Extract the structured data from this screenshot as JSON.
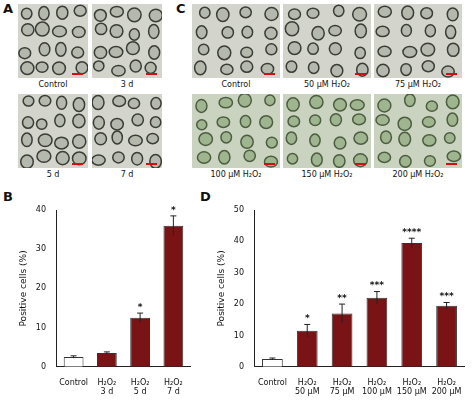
{
  "panels": [
    {
      "label": "A",
      "images": [
        "Control",
        "3 d",
        "5 d",
        "7 d"
      ]
    },
    {
      "label": "C",
      "images": [
        "Control",
        "50 μM H₂O₂",
        "75 μM H₂O₂",
        "100 μM H₂O₂",
        "150 μM H₂O₂",
        "200 μM H₂O₂"
      ]
    }
  ],
  "chart_data": [
    {
      "panel": "B",
      "type": "bar",
      "categories": [
        "Control",
        "H₂O₂ 3 d",
        "H₂O₂ 5 d",
        "H₂O₂ 7 d"
      ],
      "values": [
        2.5,
        3.5,
        12.5,
        36
      ],
      "errors": [
        0.3,
        0.3,
        1.2,
        2.5
      ],
      "significance": [
        null,
        null,
        "*",
        "*"
      ],
      "colors": [
        "#ffffff",
        "#7a1315",
        "#7a1315",
        "#7a1315"
      ],
      "y_label": "Positive cells (%)",
      "ylim": [
        0,
        40
      ],
      "yticks": [
        0,
        10,
        20,
        30,
        40
      ],
      "grid": false
    },
    {
      "panel": "D",
      "type": "bar",
      "categories": [
        "Control",
        "H₂O₂ 50 μM",
        "H₂O₂ 75 μM",
        "H₂O₂ 100 μM",
        "H₂O₂ 150 μM",
        "H₂O₂ 200 μM"
      ],
      "values": [
        2.5,
        11.5,
        17,
        22,
        39.5,
        19.5
      ],
      "errors": [
        0.3,
        2,
        3,
        2,
        1.5,
        1
      ],
      "significance": [
        null,
        "*",
        "**",
        "***",
        "****",
        "***"
      ],
      "colors": [
        "#ffffff",
        "#7a1315",
        "#7a1315",
        "#7a1315",
        "#7a1315",
        "#7a1315"
      ],
      "y_label": "Positive cells (%)",
      "ylim": [
        0,
        50
      ],
      "yticks": [
        0,
        10,
        20,
        30,
        40,
        50
      ],
      "grid": false
    }
  ]
}
